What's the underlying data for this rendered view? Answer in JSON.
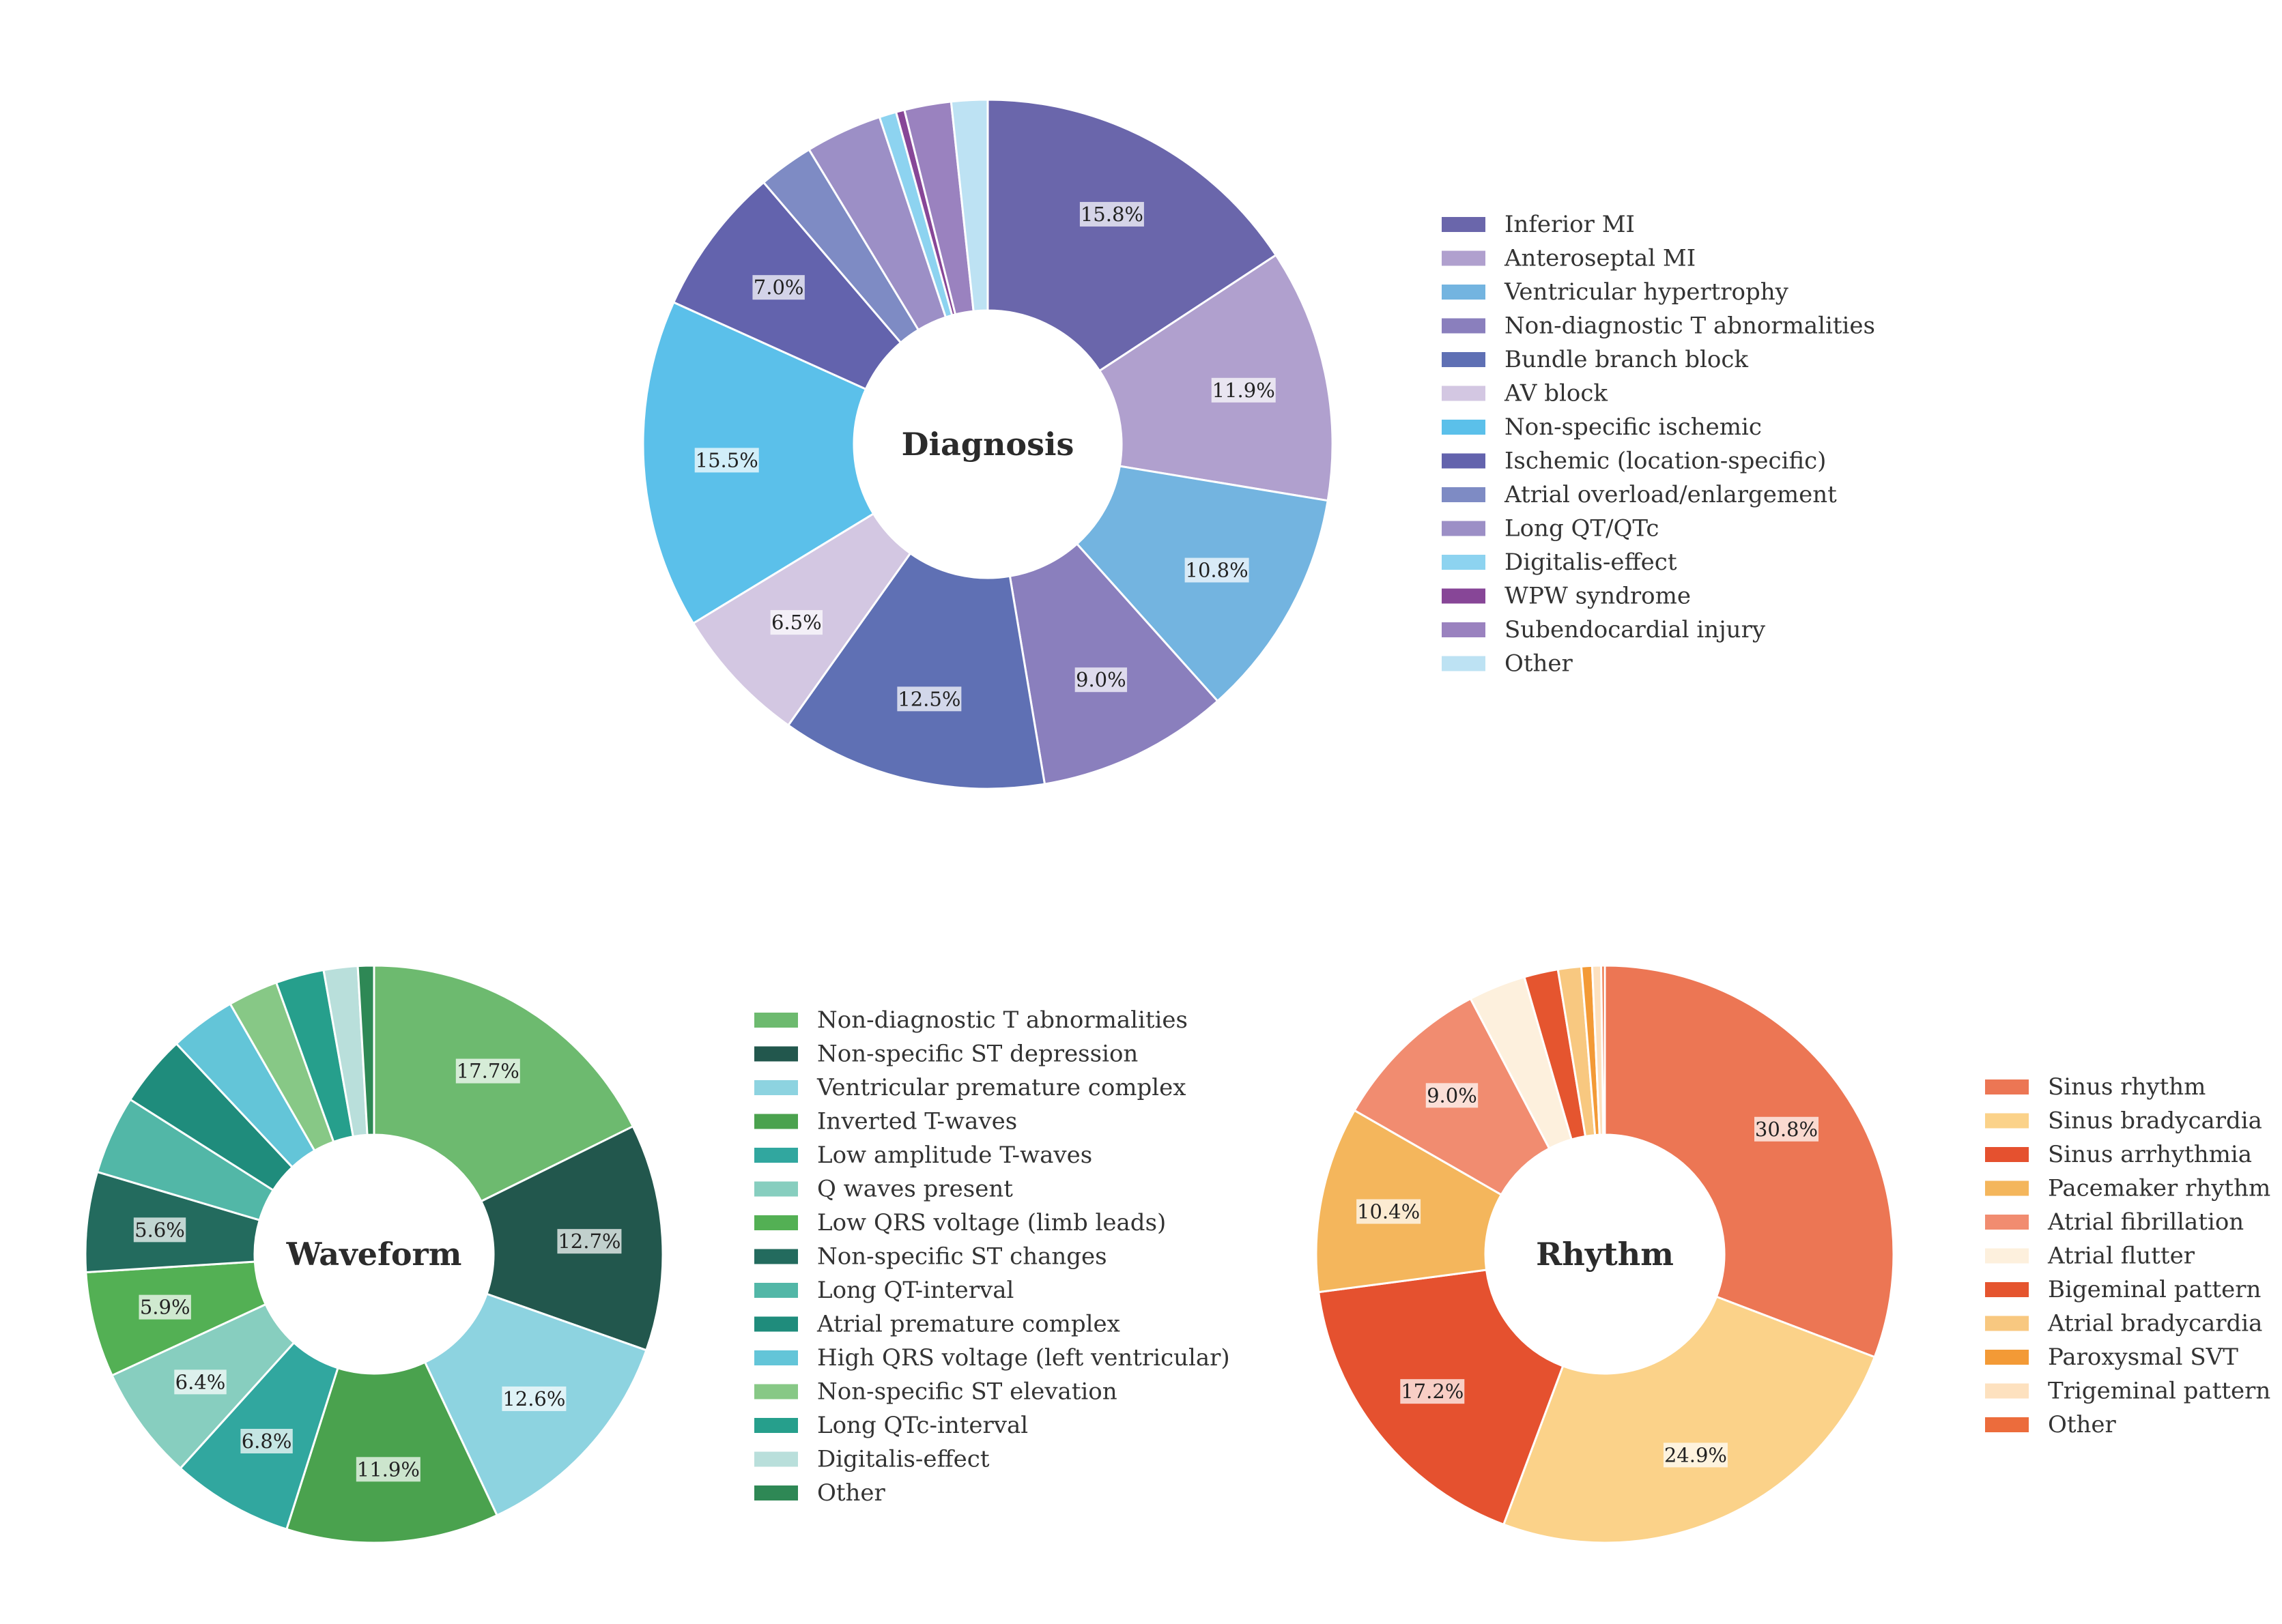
{
  "chart_data": [
    {
      "type": "pie",
      "donut": true,
      "title": "Diagnosis",
      "legend_placement": "right",
      "slices": [
        {
          "label": "Inferior MI",
          "value": 15.8,
          "color": "#6a66ab",
          "pct_label": "15.8%"
        },
        {
          "label": "Anteroseptal MI",
          "value": 11.9,
          "color": "#b0a0ce",
          "pct_label": "11.9%"
        },
        {
          "label": "Ventricular hypertrophy",
          "value": 10.8,
          "color": "#73b4e0",
          "pct_label": "10.8%"
        },
        {
          "label": "Non-diagnostic T abnormalities",
          "value": 9.0,
          "color": "#8a7fbd",
          "pct_label": "9.0%"
        },
        {
          "label": "Bundle branch block",
          "value": 12.5,
          "color": "#5f70b4",
          "pct_label": "12.5%"
        },
        {
          "label": "AV block",
          "value": 6.5,
          "color": "#d3c7e2",
          "pct_label": "6.5%"
        },
        {
          "label": "Non-specific ischemic",
          "value": 15.5,
          "color": "#5bc0ea",
          "pct_label": "15.5%"
        },
        {
          "label": "Ischemic (location-specific)",
          "value": 7.0,
          "color": "#6363ad",
          "pct_label": "7.0%"
        },
        {
          "label": "Atrial overload/enlargement",
          "value": 2.6,
          "color": "#7e8bc4",
          "pct_label": ""
        },
        {
          "label": "Long QT/QTc",
          "value": 3.6,
          "color": "#9c8fc6",
          "pct_label": ""
        },
        {
          "label": "Digitalis-effect",
          "value": 0.8,
          "color": "#8dd3f0",
          "pct_label": ""
        },
        {
          "label": "WPW syndrome",
          "value": 0.4,
          "color": "#874697",
          "pct_label": ""
        },
        {
          "label": "Subendocardial injury",
          "value": 2.2,
          "color": "#9a82bf",
          "pct_label": ""
        },
        {
          "label": "Other",
          "value": 1.7,
          "color": "#bde2f3",
          "pct_label": ""
        }
      ]
    },
    {
      "type": "pie",
      "donut": true,
      "title": "Waveform",
      "legend_placement": "right",
      "slices": [
        {
          "label": "Non-diagnostic T abnormalities",
          "value": 17.7,
          "color": "#6dba6f",
          "pct_label": "17.7%"
        },
        {
          "label": "Non-specific ST depression",
          "value": 12.7,
          "color": "#22574d",
          "pct_label": "12.7%"
        },
        {
          "label": "Ventricular premature complex",
          "value": 12.6,
          "color": "#8dd3e0",
          "pct_label": "12.6%"
        },
        {
          "label": "Inverted T-waves",
          "value": 11.9,
          "color": "#4aa24e",
          "pct_label": "11.9%"
        },
        {
          "label": "Low amplitude T-waves",
          "value": 6.8,
          "color": "#31a79f",
          "pct_label": "6.8%"
        },
        {
          "label": "Q waves present",
          "value": 6.4,
          "color": "#87cebf",
          "pct_label": "6.4%"
        },
        {
          "label": "Low QRS voltage (limb leads)",
          "value": 5.9,
          "color": "#53b054",
          "pct_label": "5.9%"
        },
        {
          "label": "Non-specific ST changes",
          "value": 5.6,
          "color": "#236b5e",
          "pct_label": "5.6%"
        },
        {
          "label": "Long QT-interval",
          "value": 4.4,
          "color": "#52b7a7",
          "pct_label": ""
        },
        {
          "label": "Atrial premature complex",
          "value": 4.0,
          "color": "#1f8c7c",
          "pct_label": ""
        },
        {
          "label": "High QRS voltage (left ventricular)",
          "value": 3.7,
          "color": "#63c5d8",
          "pct_label": ""
        },
        {
          "label": "Non-specific ST elevation",
          "value": 2.8,
          "color": "#87c886",
          "pct_label": ""
        },
        {
          "label": "Long QTc-interval",
          "value": 2.7,
          "color": "#269f8c",
          "pct_label": ""
        },
        {
          "label": "Digitalis-effect",
          "value": 1.9,
          "color": "#b9dfdb",
          "pct_label": ""
        },
        {
          "label": "Other",
          "value": 0.9,
          "color": "#2e8855",
          "pct_label": ""
        }
      ]
    },
    {
      "type": "pie",
      "donut": true,
      "title": "Rhythm",
      "legend_placement": "right",
      "slices": [
        {
          "label": "Sinus rhythm",
          "value": 30.8,
          "color": "#ec7654",
          "pct_label": "30.8%"
        },
        {
          "label": "Sinus bradycardia",
          "value": 24.9,
          "color": "#fbd289",
          "pct_label": "24.9%"
        },
        {
          "label": "Sinus arrhythmia",
          "value": 17.2,
          "color": "#e5512f",
          "pct_label": "17.2%"
        },
        {
          "label": "Pacemaker rhythm",
          "value": 10.4,
          "color": "#f4b65c",
          "pct_label": "10.4%"
        },
        {
          "label": "Atrial fibrillation",
          "value": 9.0,
          "color": "#f18c70",
          "pct_label": "9.0%"
        },
        {
          "label": "Atrial flutter",
          "value": 3.2,
          "color": "#fdf0dd",
          "pct_label": ""
        },
        {
          "label": "Bigeminal pattern",
          "value": 1.9,
          "color": "#e5552f",
          "pct_label": ""
        },
        {
          "label": "Atrial bradycardia",
          "value": 1.3,
          "color": "#f8c880",
          "pct_label": ""
        },
        {
          "label": "Paroxysmal SVT",
          "value": 0.6,
          "color": "#f39a36",
          "pct_label": ""
        },
        {
          "label": "Trigeminal pattern",
          "value": 0.5,
          "color": "#fde1bf",
          "pct_label": ""
        },
        {
          "label": "Other",
          "value": 0.2,
          "color": "#ec6c3c",
          "pct_label": ""
        }
      ]
    }
  ]
}
